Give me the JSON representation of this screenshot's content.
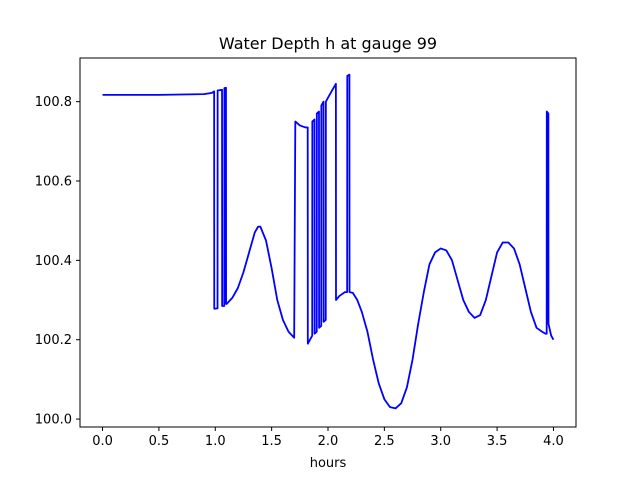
{
  "chart_data": {
    "type": "line",
    "title": "Water Depth h at gauge 99",
    "xlabel": "hours",
    "ylabel": "",
    "xlim": [
      -0.2,
      4.2
    ],
    "ylim": [
      99.98,
      100.91
    ],
    "xticks": [
      0.0,
      0.5,
      1.0,
      1.5,
      2.0,
      2.5,
      3.0,
      3.5,
      4.0
    ],
    "xtick_labels": [
      "0.0",
      "0.5",
      "1.0",
      "1.5",
      "2.0",
      "2.5",
      "3.0",
      "3.5",
      "4.0"
    ],
    "yticks": [
      100.0,
      100.2,
      100.4,
      100.6,
      100.8
    ],
    "ytick_labels": [
      "100.0",
      "100.2",
      "100.4",
      "100.6",
      "100.8"
    ],
    "grid": false,
    "series": [
      {
        "color": "#0000ff",
        "x": [
          0.0,
          0.5,
          0.9,
          0.97,
          0.99,
          0.991,
          1.02,
          1.021,
          1.06,
          1.061,
          1.08,
          1.081,
          1.095,
          1.096,
          1.1,
          1.15,
          1.2,
          1.25,
          1.3,
          1.35,
          1.38,
          1.4,
          1.45,
          1.5,
          1.55,
          1.6,
          1.65,
          1.7,
          1.71,
          1.75,
          1.8,
          1.82,
          1.821,
          1.86,
          1.861,
          1.88,
          1.881,
          1.9,
          1.901,
          1.92,
          1.921,
          1.94,
          1.941,
          1.96,
          1.961,
          1.98,
          1.981,
          2.0,
          2.04,
          2.07,
          2.071,
          2.1,
          2.15,
          2.17,
          2.171,
          2.19,
          2.191,
          2.22,
          2.26,
          2.3,
          2.35,
          2.4,
          2.45,
          2.5,
          2.55,
          2.6,
          2.65,
          2.7,
          2.75,
          2.8,
          2.85,
          2.9,
          2.95,
          3.0,
          3.05,
          3.1,
          3.15,
          3.2,
          3.25,
          3.3,
          3.35,
          3.4,
          3.45,
          3.5,
          3.55,
          3.6,
          3.65,
          3.7,
          3.75,
          3.8,
          3.85,
          3.9,
          3.93,
          3.94,
          3.941,
          3.955,
          3.956,
          3.98,
          4.0
        ],
        "values": [
          100.817,
          100.817,
          100.819,
          100.822,
          100.826,
          100.278,
          100.279,
          100.828,
          100.83,
          100.285,
          100.285,
          100.834,
          100.835,
          100.29,
          100.29,
          100.305,
          100.33,
          100.37,
          100.42,
          100.47,
          100.485,
          100.485,
          100.45,
          100.38,
          100.3,
          100.25,
          100.22,
          100.205,
          100.75,
          100.74,
          100.735,
          100.735,
          100.19,
          100.21,
          100.75,
          100.755,
          100.215,
          100.22,
          100.77,
          100.775,
          100.23,
          100.235,
          100.79,
          100.8,
          100.245,
          100.25,
          100.8,
          100.81,
          100.83,
          100.845,
          100.3,
          100.31,
          100.32,
          100.32,
          100.865,
          100.868,
          100.32,
          100.318,
          100.3,
          100.27,
          100.22,
          100.15,
          100.09,
          100.05,
          100.03,
          100.027,
          100.04,
          100.08,
          100.15,
          100.24,
          100.32,
          100.39,
          100.42,
          100.43,
          100.425,
          100.4,
          100.35,
          100.3,
          100.27,
          100.255,
          100.262,
          100.3,
          100.36,
          100.42,
          100.445,
          100.445,
          100.43,
          100.39,
          100.33,
          100.27,
          100.23,
          100.22,
          100.215,
          100.215,
          100.775,
          100.77,
          100.24,
          100.21,
          100.2
        ]
      }
    ]
  }
}
